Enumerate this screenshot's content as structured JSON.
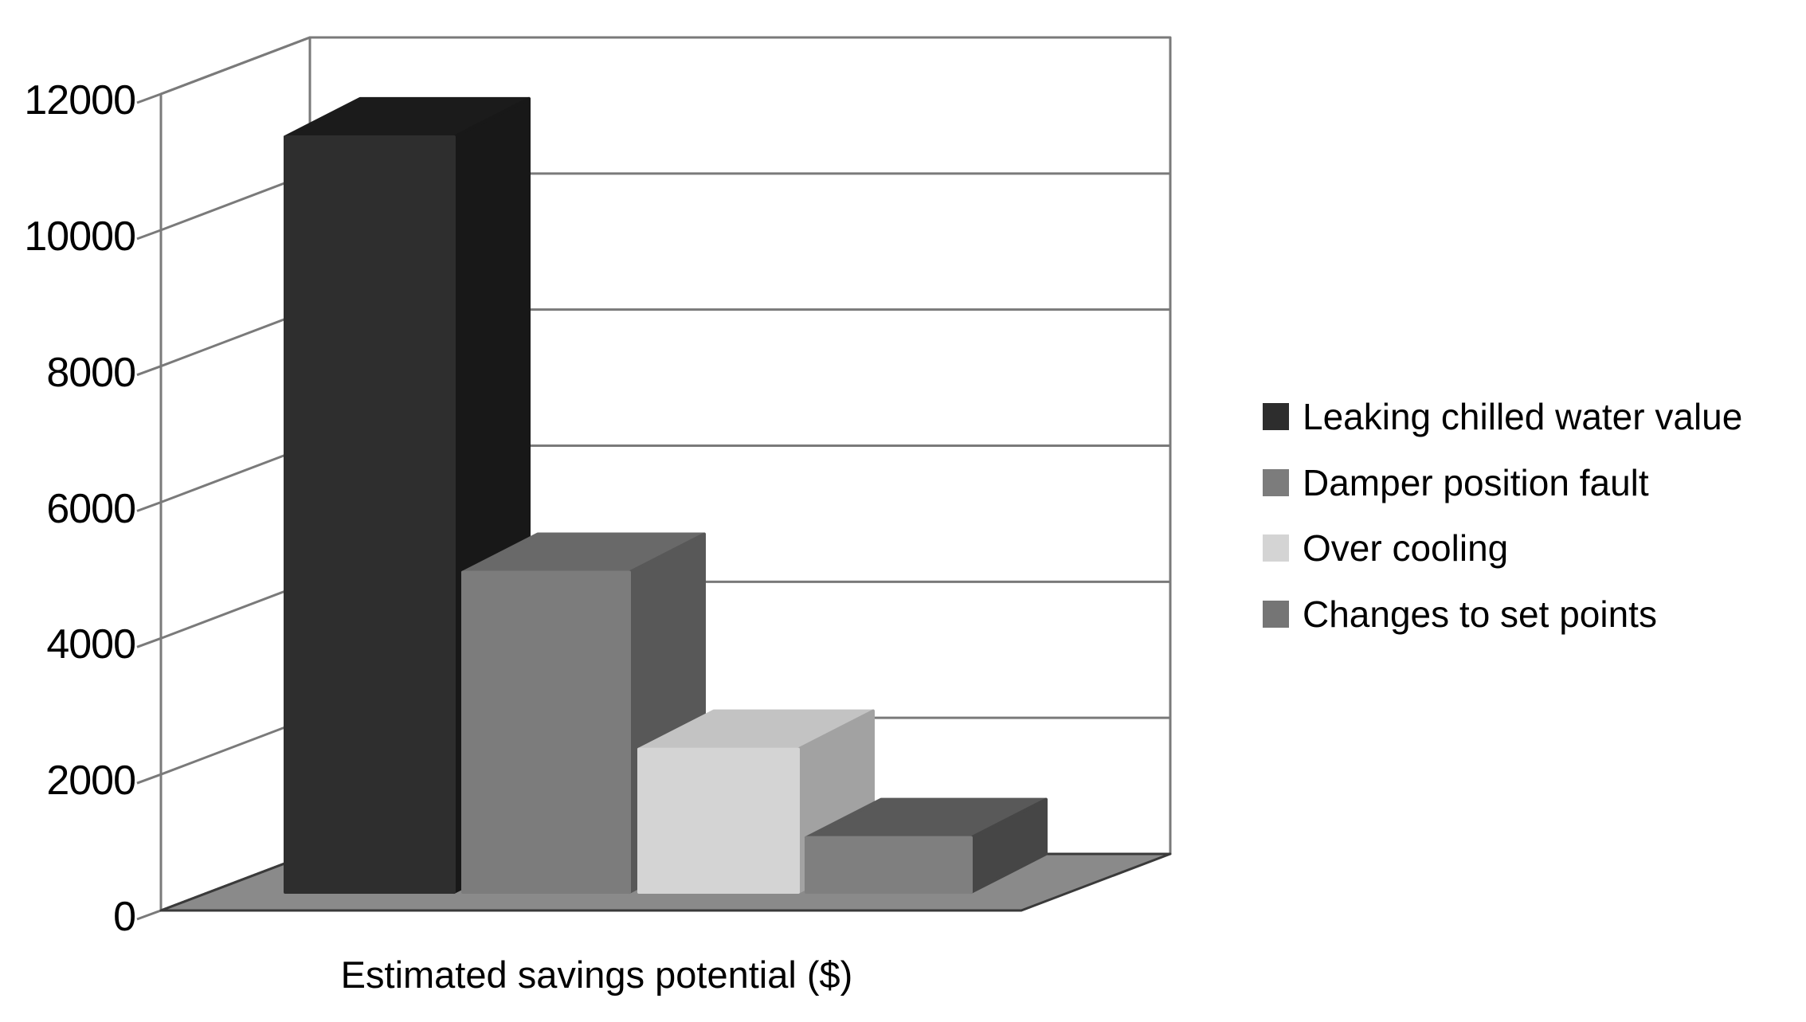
{
  "chart_data": {
    "type": "bar",
    "style": "3d-clustered-columns-grayscale",
    "title": "",
    "xlabel": "Estimated savings potential ($)",
    "ylabel": "",
    "categories": [
      "Leaking chilled water value",
      "Damper position fault",
      "Over cooling",
      "Changes to set points"
    ],
    "values": [
      11100,
      4700,
      2100,
      800
    ],
    "ylim": [
      0,
      12000
    ],
    "ytick_step": 2000,
    "grid": true,
    "legend_position": "right"
  },
  "y_axis": {
    "tick_labels": [
      "12000",
      "10000",
      "8000",
      "6000",
      "4000",
      "2000",
      "0"
    ],
    "tick_values": [
      12000,
      10000,
      8000,
      6000,
      4000,
      2000,
      0
    ]
  },
  "x_axis": {
    "title": "Estimated savings potential ($)"
  },
  "legend": {
    "items": [
      {
        "label": "Leaking chilled water value",
        "color": "#2d2d2d"
      },
      {
        "label": "Damper position fault",
        "color": "#7c7c7c"
      },
      {
        "label": "Over cooling",
        "color": "#d4d4d4"
      },
      {
        "label": "Changes to set points",
        "color": "#757575"
      }
    ]
  },
  "colors": {
    "background": "#ffffff",
    "wall_fill": "#ffffff",
    "grid_line": "#7a7a7a",
    "floor_fill": "#8a8a8a",
    "floor_edge": "#3a3a3a",
    "bars": [
      {
        "front": "#2e2e2e",
        "top": "#1b1b1b",
        "side": "#181818"
      },
      {
        "front": "#7c7c7c",
        "top": "#696969",
        "side": "#585858"
      },
      {
        "front": "#d4d4d4",
        "top": "#c3c3c3",
        "side": "#a2a2a2"
      },
      {
        "front": "#7f7f7f",
        "top": "#595959",
        "side": "#464646"
      }
    ]
  }
}
